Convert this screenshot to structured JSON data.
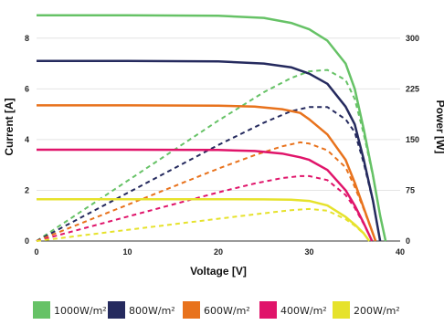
{
  "chart_data": {
    "type": "line",
    "xlabel": "Voltage [V]",
    "ylabel_left": "Current [A]",
    "ylabel_right": "Power [W]",
    "xlim": [
      0,
      40
    ],
    "ylim_current": [
      0,
      9
    ],
    "ylim_power": [
      0,
      337.5
    ],
    "x_ticks": [
      0,
      10,
      20,
      30,
      40
    ],
    "current_ticks": [
      0,
      2,
      4,
      6,
      8
    ],
    "power_ticks": [
      0,
      75,
      150,
      225,
      300
    ],
    "grid": "horizontal",
    "legend_position": "bottom",
    "series": [
      {
        "name": "1000W/m²",
        "color": "#66c266",
        "current": {
          "x": [
            0,
            10,
            20,
            25,
            28,
            30,
            32,
            34,
            35,
            36,
            37,
            37.8,
            38.4
          ],
          "y": [
            8.9,
            8.9,
            8.88,
            8.8,
            8.6,
            8.35,
            7.9,
            7.0,
            6.0,
            4.4,
            2.6,
            1.0,
            0
          ]
        },
        "power": {
          "x": [
            0,
            10,
            20,
            25,
            28,
            30,
            32,
            34,
            35,
            36,
            37,
            37.8,
            38.4
          ],
          "y": [
            0,
            89,
            178,
            220,
            241,
            251,
            253,
            238,
            210,
            158,
            96,
            38,
            0
          ]
        }
      },
      {
        "name": "800W/m²",
        "color": "#252a5e",
        "current": {
          "x": [
            0,
            10,
            20,
            25,
            28,
            30,
            32,
            34,
            35,
            36,
            37,
            37.8
          ],
          "y": [
            7.1,
            7.1,
            7.08,
            7.0,
            6.85,
            6.6,
            6.2,
            5.3,
            4.6,
            3.2,
            1.6,
            0
          ]
        },
        "power": {
          "x": [
            0,
            10,
            20,
            25,
            28,
            30,
            32,
            34,
            35,
            36,
            37,
            37.8
          ],
          "y": [
            0,
            71,
            142,
            175,
            192,
            198,
            198,
            180,
            161,
            115,
            59,
            0
          ]
        }
      },
      {
        "name": "600W/m²",
        "color": "#e8721c",
        "current": {
          "x": [
            0,
            10,
            20,
            24,
            27,
            29,
            30,
            32,
            34,
            35,
            36,
            37.3
          ],
          "y": [
            5.35,
            5.35,
            5.34,
            5.3,
            5.2,
            5.05,
            4.8,
            4.2,
            3.2,
            2.3,
            1.3,
            0
          ]
        },
        "power": {
          "x": [
            0,
            10,
            20,
            24,
            27,
            29,
            30,
            32,
            34,
            35,
            36,
            37.3
          ],
          "y": [
            0,
            53.5,
            107,
            127,
            140,
            146,
            144,
            134,
            109,
            80,
            47,
            0
          ]
        }
      },
      {
        "name": "400W/m²",
        "color": "#e0146a",
        "current": {
          "x": [
            0,
            10,
            20,
            24,
            27,
            29,
            30,
            32,
            34,
            35,
            36,
            36.9
          ],
          "y": [
            3.6,
            3.6,
            3.59,
            3.55,
            3.45,
            3.3,
            3.2,
            2.8,
            2.0,
            1.4,
            0.7,
            0
          ]
        },
        "power": {
          "x": [
            0,
            10,
            20,
            24,
            27,
            29,
            30,
            32,
            34,
            35,
            36,
            36.9
          ],
          "y": [
            0,
            36,
            72,
            85,
            93,
            96,
            96,
            90,
            68,
            49,
            25,
            0
          ]
        }
      },
      {
        "name": "200W/m²",
        "color": "#e6e22c",
        "current": {
          "x": [
            0,
            10,
            20,
            25,
            28,
            30,
            32,
            34,
            35,
            36,
            36.6
          ],
          "y": [
            1.65,
            1.65,
            1.65,
            1.64,
            1.63,
            1.58,
            1.4,
            0.95,
            0.65,
            0.3,
            0
          ]
        },
        "power": {
          "x": [
            0,
            10,
            20,
            25,
            28,
            30,
            32,
            34,
            35,
            36,
            36.6
          ],
          "y": [
            0,
            16.5,
            33,
            41,
            45.6,
            47.4,
            44.8,
            32.3,
            22.7,
            10.8,
            0
          ]
        }
      }
    ]
  }
}
